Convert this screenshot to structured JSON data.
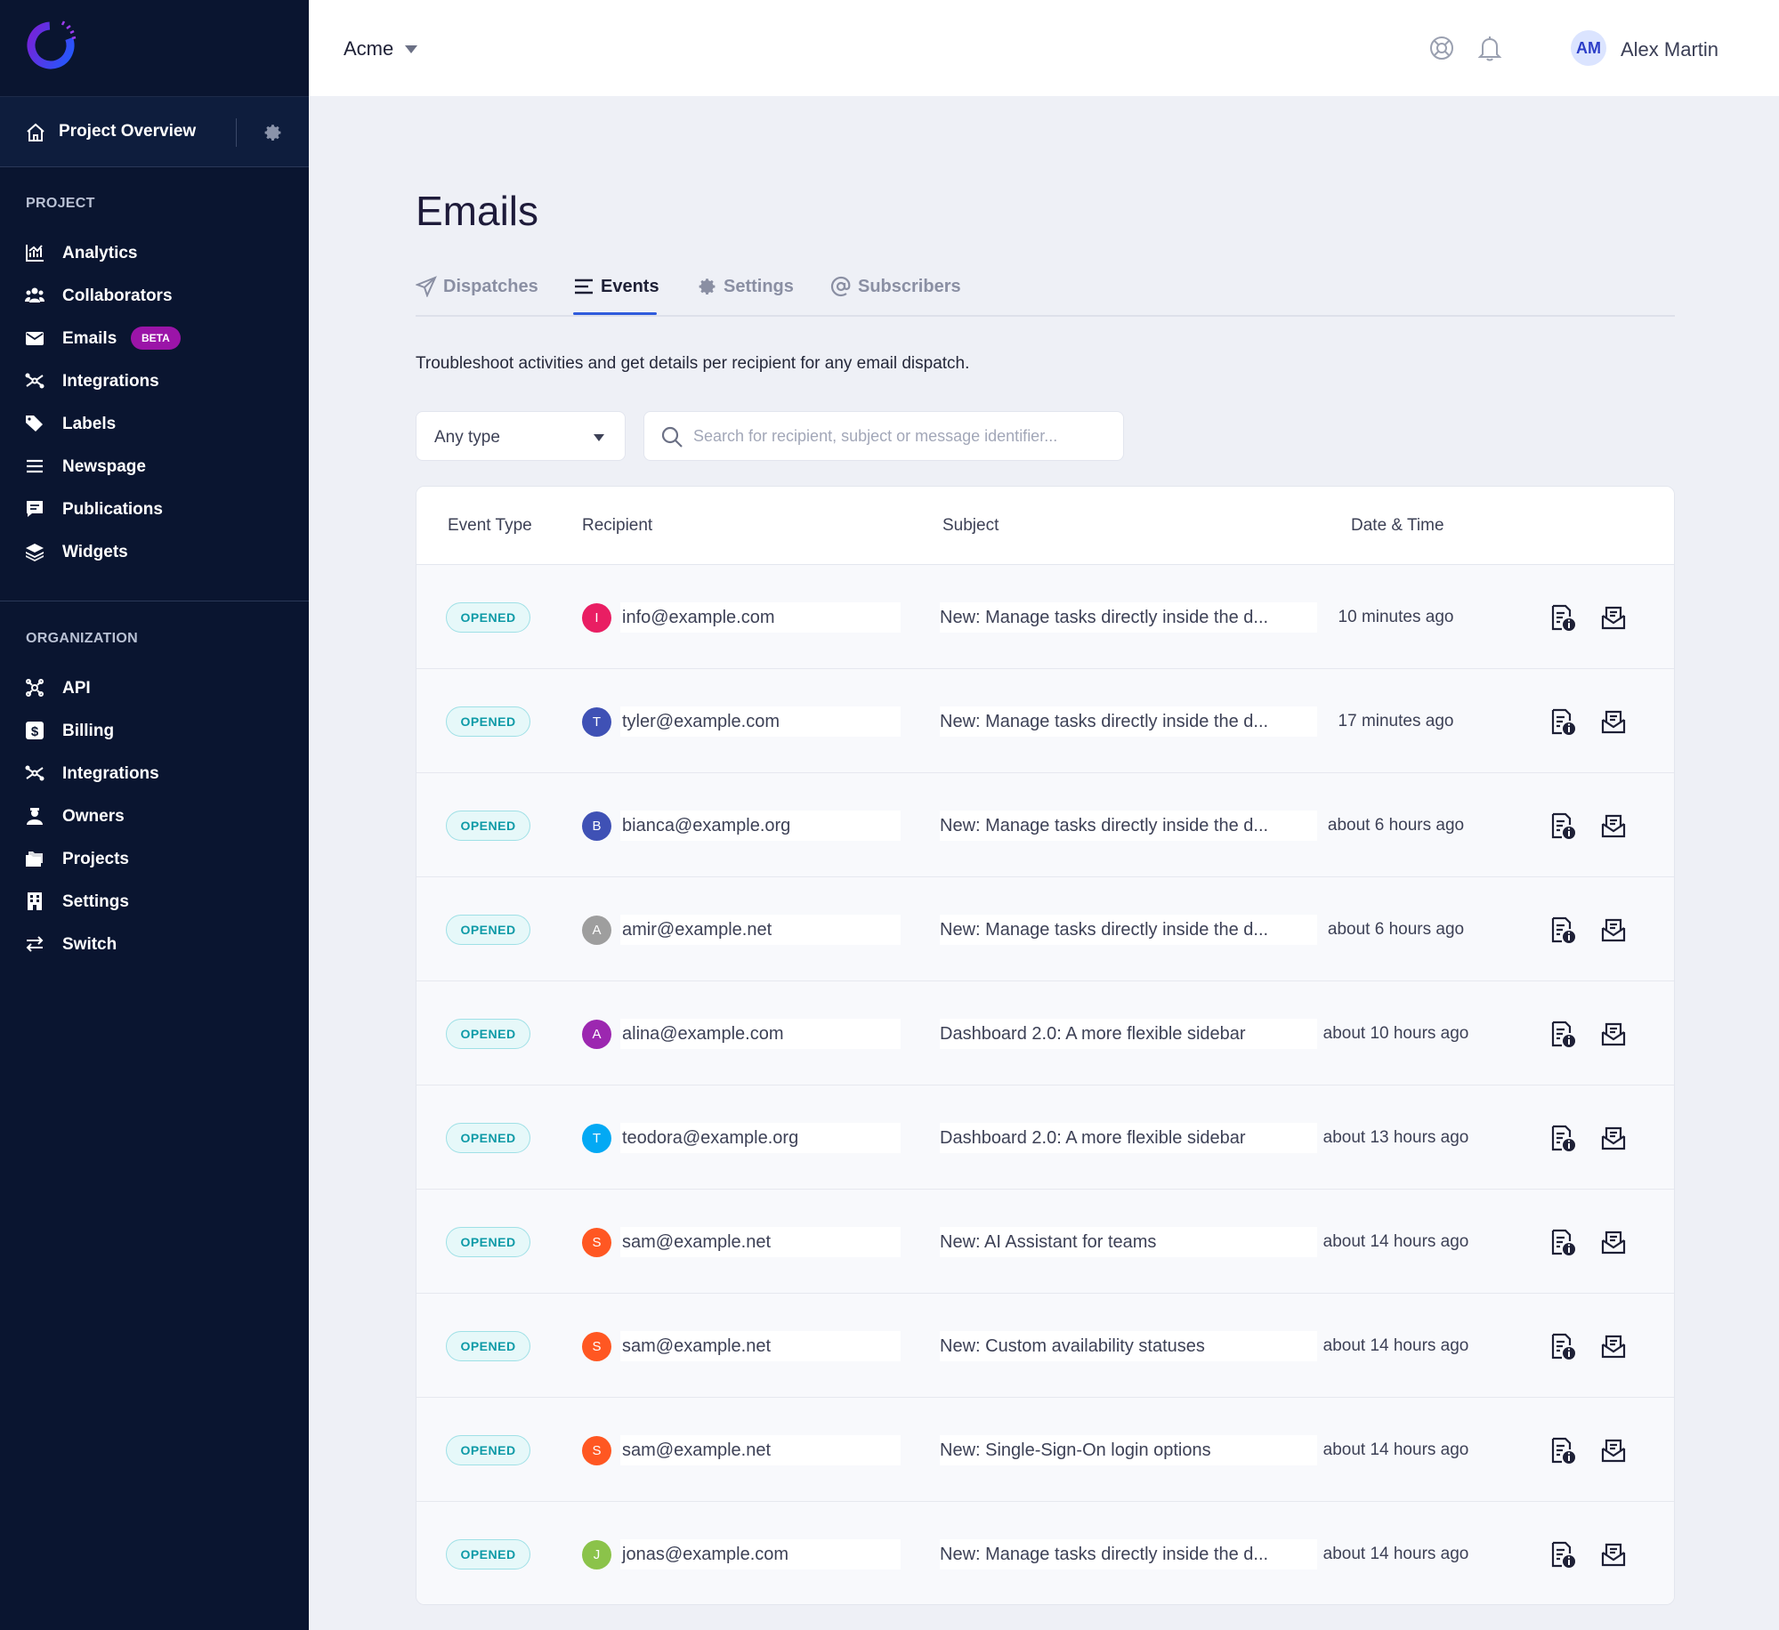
{
  "app": {
    "project_overview": "Project Overview",
    "brand_color": "#2f5bdc",
    "sidebar_bg": "#0a1530"
  },
  "sidebar": {
    "project_title": "PROJECT",
    "project_items": [
      {
        "label": "Analytics",
        "icon": "chart-icon"
      },
      {
        "label": "Collaborators",
        "icon": "users-icon"
      },
      {
        "label": "Emails",
        "icon": "mail-icon",
        "badge": "BETA"
      },
      {
        "label": "Integrations",
        "icon": "integrations-icon"
      },
      {
        "label": "Labels",
        "icon": "tags-icon"
      },
      {
        "label": "Newspage",
        "icon": "list-icon"
      },
      {
        "label": "Publications",
        "icon": "message-icon"
      },
      {
        "label": "Widgets",
        "icon": "layers-icon"
      }
    ],
    "org_title": "ORGANIZATION",
    "org_items": [
      {
        "label": "API",
        "icon": "api-icon"
      },
      {
        "label": "Billing",
        "icon": "dollar-icon"
      },
      {
        "label": "Integrations",
        "icon": "integrations-icon"
      },
      {
        "label": "Owners",
        "icon": "owner-icon"
      },
      {
        "label": "Projects",
        "icon": "folders-icon"
      },
      {
        "label": "Settings",
        "icon": "building-icon"
      },
      {
        "label": "Switch",
        "icon": "switch-icon"
      }
    ]
  },
  "topbar": {
    "org_name": "Acme",
    "user_initials": "AM",
    "user_name": "Alex Martin"
  },
  "main": {
    "title": "Emails",
    "tabs": [
      {
        "label": "Dispatches",
        "icon": "send-icon",
        "active": false
      },
      {
        "label": "Events",
        "icon": "list-icon",
        "active": true
      },
      {
        "label": "Settings",
        "icon": "gear-icon",
        "active": false
      },
      {
        "label": "Subscribers",
        "icon": "at-icon",
        "active": false
      }
    ],
    "description": "Troubleshoot activities and get details per recipient for any email dispatch.",
    "filter": {
      "type_value": "Any type"
    },
    "search": {
      "placeholder": "Search for recipient, subject or message identifier..."
    }
  },
  "table": {
    "columns": [
      "Event Type",
      "Recipient",
      "Subject",
      "Date & Time"
    ],
    "rows": [
      {
        "event": "OPENED",
        "initial": "I",
        "avatar_color": "#e91e63",
        "recipient": "info@example.com",
        "subject": "New: Manage tasks directly inside the d...",
        "date": "10 minutes ago"
      },
      {
        "event": "OPENED",
        "initial": "T",
        "avatar_color": "#3f51b5",
        "recipient": "tyler@example.com",
        "subject": "New: Manage tasks directly inside the d...",
        "date": "17 minutes ago"
      },
      {
        "event": "OPENED",
        "initial": "B",
        "avatar_color": "#3f51b5",
        "recipient": "bianca@example.org",
        "subject": "New: Manage tasks directly inside the d...",
        "date": "about 6 hours ago"
      },
      {
        "event": "OPENED",
        "initial": "A",
        "avatar_color": "#9e9e9e",
        "recipient": "amir@example.net",
        "subject": "New: Manage tasks directly inside the d...",
        "date": "about 6 hours ago"
      },
      {
        "event": "OPENED",
        "initial": "A",
        "avatar_color": "#9c27b0",
        "recipient": "alina@example.com",
        "subject": "Dashboard 2.0: A more flexible sidebar",
        "date": "about 10 hours ago"
      },
      {
        "event": "OPENED",
        "initial": "T",
        "avatar_color": "#03a9f4",
        "recipient": "teodora@example.org",
        "subject": "Dashboard 2.0: A more flexible sidebar",
        "date": "about 13 hours ago"
      },
      {
        "event": "OPENED",
        "initial": "S",
        "avatar_color": "#ff5722",
        "recipient": "sam@example.net",
        "subject": "New: AI Assistant for teams",
        "date": "about 14 hours ago"
      },
      {
        "event": "OPENED",
        "initial": "S",
        "avatar_color": "#ff5722",
        "recipient": "sam@example.net",
        "subject": "New: Custom availability statuses",
        "date": "about 14 hours ago"
      },
      {
        "event": "OPENED",
        "initial": "S",
        "avatar_color": "#ff5722",
        "recipient": "sam@example.net",
        "subject": "New: Single-Sign-On login options",
        "date": "about 14 hours ago"
      },
      {
        "event": "OPENED",
        "initial": "J",
        "avatar_color": "#8bc34a",
        "recipient": "jonas@example.com",
        "subject": "New: Manage tasks directly inside the d...",
        "date": "about 14 hours ago"
      }
    ]
  }
}
